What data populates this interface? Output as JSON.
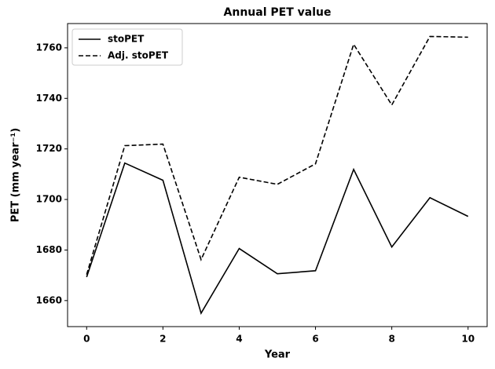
{
  "chart_data": {
    "type": "line",
    "title": "Annual PET value",
    "xlabel": "Year",
    "ylabel": "PET (mm year⁻¹)",
    "x": [
      0,
      1,
      2,
      3,
      4,
      5,
      6,
      7,
      8,
      9,
      10
    ],
    "series": [
      {
        "name": "stoPET",
        "color": "#000000",
        "dash": "solid",
        "values": [
          1669.3,
          1714.4,
          1707.6,
          1655.0,
          1680.6,
          1670.6,
          1671.8,
          1711.9,
          1681.2,
          1700.7,
          1693.3
        ]
      },
      {
        "name": "Adj. stoPET",
        "color": "#000000",
        "dash": "dashed",
        "values": [
          1670.3,
          1721.3,
          1721.9,
          1676.2,
          1708.8,
          1706.0,
          1714.1,
          1761.4,
          1737.4,
          1764.5,
          1764.2
        ]
      }
    ],
    "xlim": [
      -0.5,
      10.5
    ],
    "ylim": [
      1649.7,
      1769.6
    ],
    "xticks": [
      0,
      2,
      4,
      6,
      8,
      10
    ],
    "yticks": [
      1660,
      1680,
      1700,
      1720,
      1740,
      1760
    ],
    "legend": "upper left",
    "grid": false
  }
}
